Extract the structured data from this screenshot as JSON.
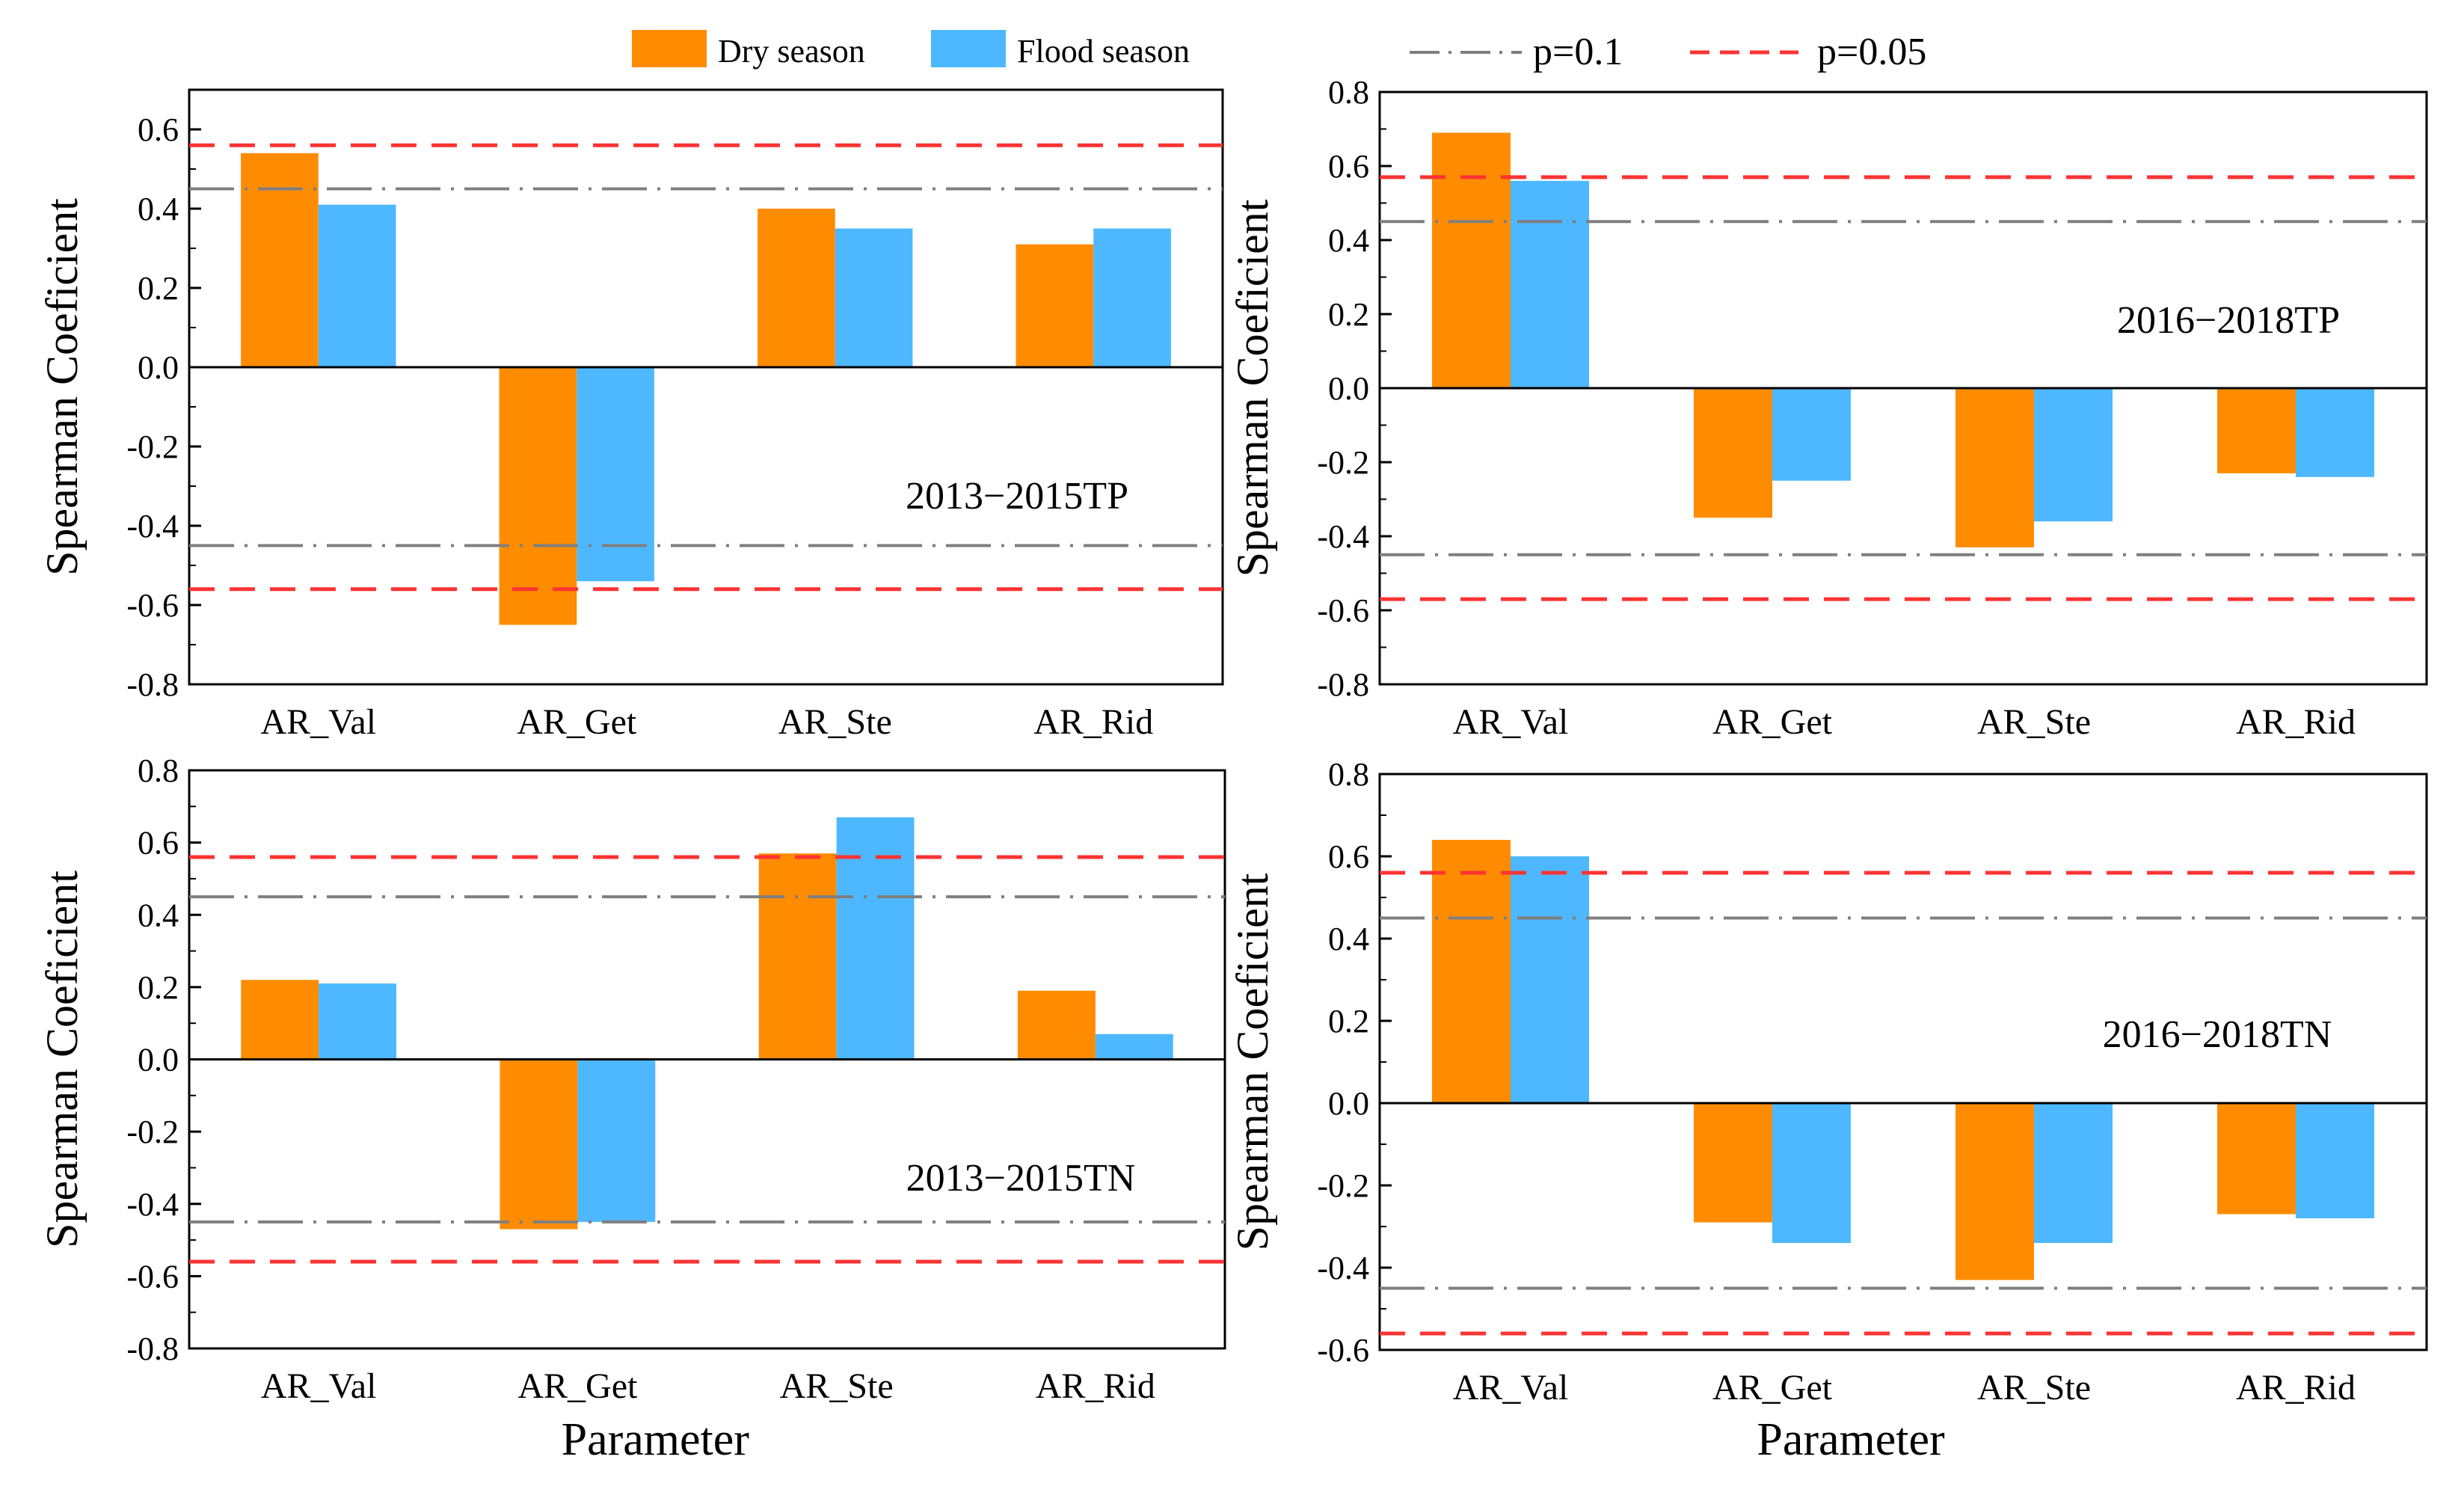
{
  "legend": {
    "entries": [
      {
        "label": "Dry season",
        "color": "#FF8C00",
        "kind": "patch"
      },
      {
        "label": "Flood season",
        "color": "#4DB8FF",
        "kind": "patch"
      },
      {
        "label": "p=0.1",
        "color": "#7F7F7F",
        "kind": "dashdot"
      },
      {
        "label": "p=0.05",
        "color": "#FF3333",
        "kind": "dash"
      }
    ]
  },
  "colors": {
    "dry": "#FF8C00",
    "flood": "#4DB8FF",
    "p01": "#7F7F7F",
    "p005": "#FF3333",
    "axis": "#000000"
  },
  "chart_data": [
    {
      "type": "bar",
      "panel": "top-left",
      "annotation": "2013−2015TP",
      "ylabel": "Spearman Coeficient",
      "xlabel": "",
      "ylim": [
        -0.8,
        0.7
      ],
      "yticks": [
        -0.8,
        -0.6,
        -0.4,
        -0.2,
        0.0,
        0.2,
        0.4,
        0.6
      ],
      "tick_labels": [
        "-0.8",
        "-0.6",
        "-0.4",
        "-0.2",
        "0.0",
        "0.2",
        "0.4",
        "0.6"
      ],
      "categories": [
        "AR_Val",
        "AR_Get",
        "AR_Ste",
        "AR_Rid"
      ],
      "series": [
        {
          "name": "Dry season",
          "values": [
            0.54,
            -0.65,
            0.4,
            0.31
          ]
        },
        {
          "name": "Flood season",
          "values": [
            0.41,
            -0.54,
            0.35,
            0.35
          ]
        }
      ],
      "reference_lines": [
        {
          "name": "p=0.1",
          "values": [
            0.45,
            -0.45
          ]
        },
        {
          "name": "p=0.05",
          "values": [
            0.56,
            -0.56
          ]
        }
      ]
    },
    {
      "type": "bar",
      "panel": "top-right",
      "annotation": "2016−2018TP",
      "ylabel": "Spearman Coeficient",
      "xlabel": "",
      "ylim": [
        -0.8,
        0.8
      ],
      "yticks": [
        -0.8,
        -0.6,
        -0.4,
        -0.2,
        0.0,
        0.2,
        0.4,
        0.6,
        0.8
      ],
      "tick_labels": [
        "-0.8",
        "-0.6",
        "-0.4",
        "-0.2",
        "0.0",
        "0.2",
        "0.4",
        "0.6",
        "0.8"
      ],
      "categories": [
        "AR_Val",
        "AR_Get",
        "AR_Ste",
        "AR_Rid"
      ],
      "series": [
        {
          "name": "Dry season",
          "values": [
            0.69,
            -0.35,
            -0.43,
            -0.23
          ]
        },
        {
          "name": "Flood season",
          "values": [
            0.56,
            -0.25,
            -0.36,
            -0.24
          ]
        }
      ],
      "reference_lines": [
        {
          "name": "p=0.1",
          "values": [
            0.45,
            -0.45
          ]
        },
        {
          "name": "p=0.05",
          "values": [
            0.57,
            -0.57
          ]
        }
      ]
    },
    {
      "type": "bar",
      "panel": "bottom-left",
      "annotation": "2013−2015TN",
      "ylabel": "Spearman Coeficient",
      "xlabel": "Parameter",
      "ylim": [
        -0.8,
        0.8
      ],
      "yticks": [
        -0.8,
        -0.6,
        -0.4,
        -0.2,
        0.0,
        0.2,
        0.4,
        0.6,
        0.8
      ],
      "tick_labels": [
        "-0.8",
        "-0.6",
        "-0.4",
        "-0.2",
        "0.0",
        "0.2",
        "0.4",
        "0.6",
        "0.8"
      ],
      "categories": [
        "AR_Val",
        "AR_Get",
        "AR_Ste",
        "AR_Rid"
      ],
      "series": [
        {
          "name": "Dry season",
          "values": [
            0.22,
            -0.47,
            0.57,
            0.19
          ]
        },
        {
          "name": "Flood season",
          "values": [
            0.21,
            -0.45,
            0.67,
            0.07
          ]
        }
      ],
      "reference_lines": [
        {
          "name": "p=0.1",
          "values": [
            0.45,
            -0.45
          ]
        },
        {
          "name": "p=0.05",
          "values": [
            0.56,
            -0.56
          ]
        }
      ]
    },
    {
      "type": "bar",
      "panel": "bottom-right",
      "annotation": "2016−2018TN",
      "ylabel": "Spearman Coeficient",
      "xlabel": "Parameter",
      "ylim": [
        -0.6,
        0.8
      ],
      "yticks": [
        -0.6,
        -0.4,
        -0.2,
        0.0,
        0.2,
        0.4,
        0.6,
        0.8
      ],
      "tick_labels": [
        "-0.6",
        "-0.4",
        "-0.2",
        "0.0",
        "0.2",
        "0.4",
        "0.6",
        "0.8"
      ],
      "categories": [
        "AR_Val",
        "AR_Get",
        "AR_Ste",
        "AR_Rid"
      ],
      "series": [
        {
          "name": "Dry season",
          "values": [
            0.64,
            -0.29,
            -0.43,
            -0.27
          ]
        },
        {
          "name": "Flood season",
          "values": [
            0.6,
            -0.34,
            -0.34,
            -0.28
          ]
        }
      ],
      "reference_lines": [
        {
          "name": "p=0.1",
          "values": [
            0.45,
            -0.45
          ]
        },
        {
          "name": "p=0.05",
          "values": [
            0.56,
            -0.56
          ]
        }
      ]
    }
  ]
}
